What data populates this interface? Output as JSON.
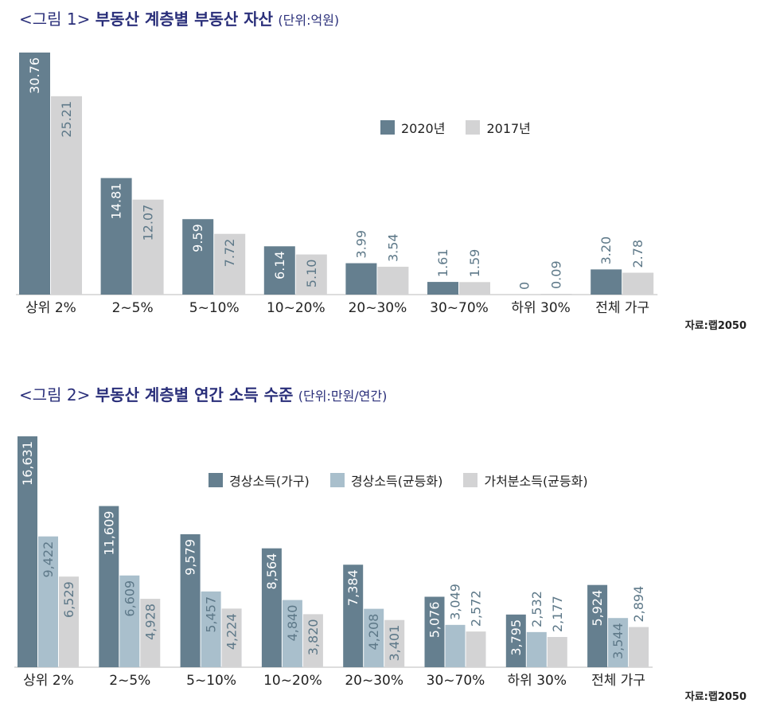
{
  "figures": [
    {
      "title_prefix": "<그림 1>",
      "title_main": "부동산 계층별 부동산 자산",
      "title_unit": "(단위:억원)",
      "source": "자료:랩2050"
    },
    {
      "title_prefix": "<그림 2>",
      "title_main": "부동산 계층별 연간 소득 수준",
      "title_unit": "(단위:만원/연간)",
      "source": "자료:랩2050"
    }
  ],
  "chart_data": [
    {
      "type": "bar",
      "title": "<그림 1> 부동산 계층별 부동산 자산",
      "unit": "(단위:억원)",
      "categories": [
        "상위 2%",
        "2~5%",
        "5~10%",
        "10~20%",
        "20~30%",
        "30~70%",
        "하위 30%",
        "전체 가구"
      ],
      "series": [
        {
          "name": "2020년",
          "color": "#657f8f",
          "values": [
            30.76,
            14.81,
            9.59,
            6.14,
            3.99,
            1.61,
            0,
            3.2
          ],
          "labels": [
            "30.76",
            "14.81",
            "9.59",
            "6.14",
            "3.99",
            "1.61",
            "0",
            "3.20"
          ]
        },
        {
          "name": "2017년",
          "color": "#d3d3d4",
          "values": [
            25.21,
            12.07,
            7.72,
            5.1,
            3.54,
            1.59,
            0.09,
            2.78
          ],
          "labels": [
            "25.21",
            "12.07",
            "7.72",
            "5.10",
            "3.54",
            "1.59",
            "0.09",
            "2.78"
          ]
        }
      ],
      "ylim": [
        0,
        30.76
      ],
      "legend": "top-right",
      "grid": false
    },
    {
      "type": "bar",
      "title": "<그림 2> 부동산 계층별 연간 소득 수준",
      "unit": "(단위:만원/연간)",
      "categories": [
        "상위 2%",
        "2~5%",
        "5~10%",
        "10~20%",
        "20~30%",
        "30~70%",
        "하위 30%",
        "전체 가구"
      ],
      "series": [
        {
          "name": "경상소득(가구)",
          "color": "#657f8f",
          "values": [
            16631,
            11609,
            9579,
            8564,
            7384,
            5076,
            3795,
            5924
          ],
          "labels": [
            "16,631",
            "11,609",
            "9,579",
            "8,564",
            "7,384",
            "5,076",
            "3,795",
            "5,924"
          ]
        },
        {
          "name": "경상소득(균등화)",
          "color": "#a9bfcc",
          "values": [
            9422,
            6609,
            5457,
            4840,
            4208,
            3049,
            2532,
            3544
          ],
          "labels": [
            "9,422",
            "6,609",
            "5,457",
            "4,840",
            "4,208",
            "3,049",
            "2,532",
            "3,544"
          ]
        },
        {
          "name": "가처분소득(균등화)",
          "color": "#d3d3d4",
          "values": [
            6529,
            4928,
            4224,
            3820,
            3401,
            2572,
            2177,
            2894
          ],
          "labels": [
            "6,529",
            "4,928",
            "4,224",
            "3,820",
            "3,401",
            "2,572",
            "2,177",
            "2,894"
          ]
        }
      ],
      "ylim": [
        0,
        16631
      ],
      "legend": "top-right",
      "grid": false
    }
  ]
}
